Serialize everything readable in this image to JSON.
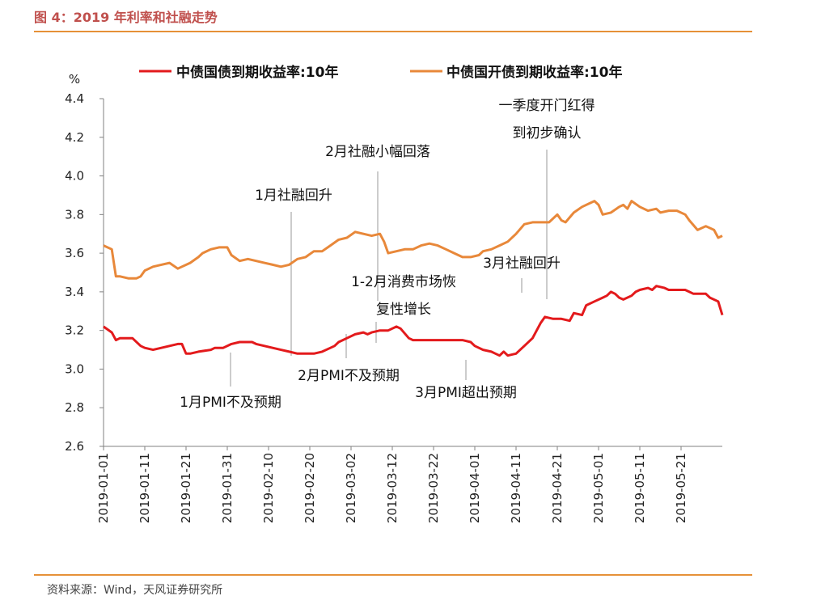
{
  "header": {
    "title": "图 4：2019 年利率和社融走势"
  },
  "footer": {
    "source": "资料来源：Wind，天风证券研究所"
  },
  "chart_data": {
    "type": "line",
    "ylabel": "%",
    "ylim": [
      2.6,
      4.4
    ],
    "yticks": [
      "4.4",
      "4.2",
      "4.0",
      "3.8",
      "3.6",
      "3.4",
      "3.2",
      "3.0",
      "2.8",
      "2.6"
    ],
    "x_tick_labels": [
      "2019-01-01",
      "2019-01-11",
      "2019-01-21",
      "2019-01-31",
      "2019-02-10",
      "2019-02-20",
      "2019-03-02",
      "2019-03-12",
      "2019-03-22",
      "2019-04-01",
      "2019-04-11",
      "2019-04-21",
      "2019-05-01",
      "2019-05-11",
      "2019-05-21"
    ],
    "xrange": [
      "2019-01-01",
      "2019-05-31"
    ],
    "legend_position": "top",
    "series": [
      {
        "name": "中债国债到期收益率:10年",
        "color": "#e31a1c",
        "points": [
          [
            "2019-01-01",
            3.22
          ],
          [
            "2019-01-03",
            3.19
          ],
          [
            "2019-01-04",
            3.15
          ],
          [
            "2019-01-05",
            3.16
          ],
          [
            "2019-01-07",
            3.16
          ],
          [
            "2019-01-08",
            3.16
          ],
          [
            "2019-01-10",
            3.12
          ],
          [
            "2019-01-11",
            3.11
          ],
          [
            "2019-01-13",
            3.1
          ],
          [
            "2019-01-15",
            3.11
          ],
          [
            "2019-01-17",
            3.12
          ],
          [
            "2019-01-19",
            3.13
          ],
          [
            "2019-01-20",
            3.13
          ],
          [
            "2019-01-21",
            3.08
          ],
          [
            "2019-01-22",
            3.08
          ],
          [
            "2019-01-24",
            3.09
          ],
          [
            "2019-01-27",
            3.1
          ],
          [
            "2019-01-28",
            3.11
          ],
          [
            "2019-01-30",
            3.11
          ],
          [
            "2019-02-01",
            3.13
          ],
          [
            "2019-02-03",
            3.14
          ],
          [
            "2019-02-06",
            3.14
          ],
          [
            "2019-02-07",
            3.13
          ],
          [
            "2019-02-09",
            3.12
          ],
          [
            "2019-02-11",
            3.11
          ],
          [
            "2019-02-13",
            3.1
          ],
          [
            "2019-02-15",
            3.09
          ],
          [
            "2019-02-17",
            3.08
          ],
          [
            "2019-02-19",
            3.08
          ],
          [
            "2019-02-21",
            3.08
          ],
          [
            "2019-02-23",
            3.09
          ],
          [
            "2019-02-25",
            3.11
          ],
          [
            "2019-02-26",
            3.12
          ],
          [
            "2019-02-27",
            3.14
          ],
          [
            "2019-02-28",
            3.15
          ],
          [
            "2019-03-01",
            3.16
          ],
          [
            "2019-03-03",
            3.18
          ],
          [
            "2019-03-05",
            3.19
          ],
          [
            "2019-03-06",
            3.18
          ],
          [
            "2019-03-07",
            3.19
          ],
          [
            "2019-03-09",
            3.2
          ],
          [
            "2019-03-11",
            3.2
          ],
          [
            "2019-03-13",
            3.22
          ],
          [
            "2019-03-14",
            3.21
          ],
          [
            "2019-03-16",
            3.16
          ],
          [
            "2019-03-17",
            3.15
          ],
          [
            "2019-03-19",
            3.15
          ],
          [
            "2019-03-21",
            3.15
          ],
          [
            "2019-03-22",
            3.15
          ],
          [
            "2019-03-23",
            3.15
          ],
          [
            "2019-03-25",
            3.15
          ],
          [
            "2019-03-27",
            3.15
          ],
          [
            "2019-03-29",
            3.15
          ],
          [
            "2019-03-31",
            3.14
          ],
          [
            "2019-04-01",
            3.12
          ],
          [
            "2019-04-03",
            3.1
          ],
          [
            "2019-04-05",
            3.09
          ],
          [
            "2019-04-06",
            3.08
          ],
          [
            "2019-04-07",
            3.07
          ],
          [
            "2019-04-08",
            3.09
          ],
          [
            "2019-04-09",
            3.07
          ],
          [
            "2019-04-11",
            3.08
          ],
          [
            "2019-04-13",
            3.12
          ],
          [
            "2019-04-15",
            3.16
          ],
          [
            "2019-04-17",
            3.24
          ],
          [
            "2019-04-18",
            3.27
          ],
          [
            "2019-04-20",
            3.26
          ],
          [
            "2019-04-22",
            3.26
          ],
          [
            "2019-04-24",
            3.25
          ],
          [
            "2019-04-25",
            3.29
          ],
          [
            "2019-04-27",
            3.28
          ],
          [
            "2019-04-28",
            3.33
          ],
          [
            "2019-04-30",
            3.35
          ],
          [
            "2019-05-02",
            3.37
          ],
          [
            "2019-05-03",
            3.38
          ],
          [
            "2019-05-04",
            3.4
          ],
          [
            "2019-05-05",
            3.39
          ],
          [
            "2019-05-06",
            3.37
          ],
          [
            "2019-05-07",
            3.36
          ],
          [
            "2019-05-09",
            3.38
          ],
          [
            "2019-05-10",
            3.4
          ],
          [
            "2019-05-11",
            3.41
          ],
          [
            "2019-05-13",
            3.42
          ],
          [
            "2019-05-14",
            3.41
          ],
          [
            "2019-05-15",
            3.43
          ],
          [
            "2019-05-17",
            3.42
          ],
          [
            "2019-05-18",
            3.41
          ],
          [
            "2019-05-20",
            3.41
          ],
          [
            "2019-05-22",
            3.41
          ],
          [
            "2019-05-23",
            3.4
          ],
          [
            "2019-05-24",
            3.39
          ],
          [
            "2019-05-25",
            3.39
          ],
          [
            "2019-05-27",
            3.39
          ],
          [
            "2019-05-28",
            3.37
          ],
          [
            "2019-05-30",
            3.35
          ],
          [
            "2019-05-31",
            3.28
          ]
        ]
      },
      {
        "name": "中债国开债到期收益率:10年",
        "color": "#e8883a",
        "points": [
          [
            "2019-01-01",
            3.64
          ],
          [
            "2019-01-03",
            3.62
          ],
          [
            "2019-01-04",
            3.48
          ],
          [
            "2019-01-05",
            3.48
          ],
          [
            "2019-01-07",
            3.47
          ],
          [
            "2019-01-09",
            3.47
          ],
          [
            "2019-01-10",
            3.48
          ],
          [
            "2019-01-11",
            3.51
          ],
          [
            "2019-01-13",
            3.53
          ],
          [
            "2019-01-15",
            3.54
          ],
          [
            "2019-01-17",
            3.55
          ],
          [
            "2019-01-19",
            3.52
          ],
          [
            "2019-01-20",
            3.53
          ],
          [
            "2019-01-22",
            3.55
          ],
          [
            "2019-01-24",
            3.58
          ],
          [
            "2019-01-25",
            3.6
          ],
          [
            "2019-01-27",
            3.62
          ],
          [
            "2019-01-29",
            3.63
          ],
          [
            "2019-01-31",
            3.63
          ],
          [
            "2019-02-01",
            3.59
          ],
          [
            "2019-02-03",
            3.56
          ],
          [
            "2019-02-05",
            3.57
          ],
          [
            "2019-02-07",
            3.56
          ],
          [
            "2019-02-09",
            3.55
          ],
          [
            "2019-02-11",
            3.54
          ],
          [
            "2019-02-13",
            3.53
          ],
          [
            "2019-02-15",
            3.54
          ],
          [
            "2019-02-17",
            3.57
          ],
          [
            "2019-02-19",
            3.58
          ],
          [
            "2019-02-21",
            3.61
          ],
          [
            "2019-02-23",
            3.61
          ],
          [
            "2019-02-25",
            3.64
          ],
          [
            "2019-02-27",
            3.67
          ],
          [
            "2019-03-01",
            3.68
          ],
          [
            "2019-03-03",
            3.71
          ],
          [
            "2019-03-05",
            3.7
          ],
          [
            "2019-03-07",
            3.69
          ],
          [
            "2019-03-09",
            3.7
          ],
          [
            "2019-03-10",
            3.66
          ],
          [
            "2019-03-11",
            3.6
          ],
          [
            "2019-03-13",
            3.61
          ],
          [
            "2019-03-15",
            3.62
          ],
          [
            "2019-03-17",
            3.62
          ],
          [
            "2019-03-19",
            3.64
          ],
          [
            "2019-03-21",
            3.65
          ],
          [
            "2019-03-23",
            3.64
          ],
          [
            "2019-03-25",
            3.62
          ],
          [
            "2019-03-27",
            3.6
          ],
          [
            "2019-03-29",
            3.58
          ],
          [
            "2019-03-31",
            3.58
          ],
          [
            "2019-04-02",
            3.59
          ],
          [
            "2019-04-03",
            3.61
          ],
          [
            "2019-04-05",
            3.62
          ],
          [
            "2019-04-07",
            3.64
          ],
          [
            "2019-04-09",
            3.66
          ],
          [
            "2019-04-11",
            3.7
          ],
          [
            "2019-04-13",
            3.75
          ],
          [
            "2019-04-15",
            3.76
          ],
          [
            "2019-04-17",
            3.76
          ],
          [
            "2019-04-19",
            3.76
          ],
          [
            "2019-04-21",
            3.8
          ],
          [
            "2019-04-22",
            3.77
          ],
          [
            "2019-04-23",
            3.76
          ],
          [
            "2019-04-25",
            3.81
          ],
          [
            "2019-04-27",
            3.84
          ],
          [
            "2019-04-29",
            3.86
          ],
          [
            "2019-04-30",
            3.87
          ],
          [
            "2019-05-01",
            3.85
          ],
          [
            "2019-05-02",
            3.8
          ],
          [
            "2019-05-04",
            3.81
          ],
          [
            "2019-05-06",
            3.84
          ],
          [
            "2019-05-07",
            3.85
          ],
          [
            "2019-05-08",
            3.83
          ],
          [
            "2019-05-09",
            3.87
          ],
          [
            "2019-05-11",
            3.84
          ],
          [
            "2019-05-13",
            3.82
          ],
          [
            "2019-05-15",
            3.83
          ],
          [
            "2019-05-16",
            3.81
          ],
          [
            "2019-05-18",
            3.82
          ],
          [
            "2019-05-20",
            3.82
          ],
          [
            "2019-05-22",
            3.8
          ],
          [
            "2019-05-23",
            3.77
          ],
          [
            "2019-05-25",
            3.72
          ],
          [
            "2019-05-27",
            3.74
          ],
          [
            "2019-05-29",
            3.72
          ],
          [
            "2019-05-30",
            3.68
          ],
          [
            "2019-05-31",
            3.69
          ]
        ]
      }
    ],
    "annotations": [
      {
        "lines": [
          "1月社融回升"
        ]
      },
      {
        "lines": [
          "2月社融小幅回落"
        ]
      },
      {
        "lines": [
          "一季度开门红得",
          "到初步确认"
        ]
      },
      {
        "lines": [
          "1-2月消费市场恢",
          "复性增长"
        ]
      },
      {
        "lines": [
          "3月社融回升"
        ]
      },
      {
        "lines": [
          "1月PMI不及预期"
        ]
      },
      {
        "lines": [
          "2月PMI不及预期"
        ]
      },
      {
        "lines": [
          "3月PMI超出预期"
        ]
      }
    ]
  }
}
